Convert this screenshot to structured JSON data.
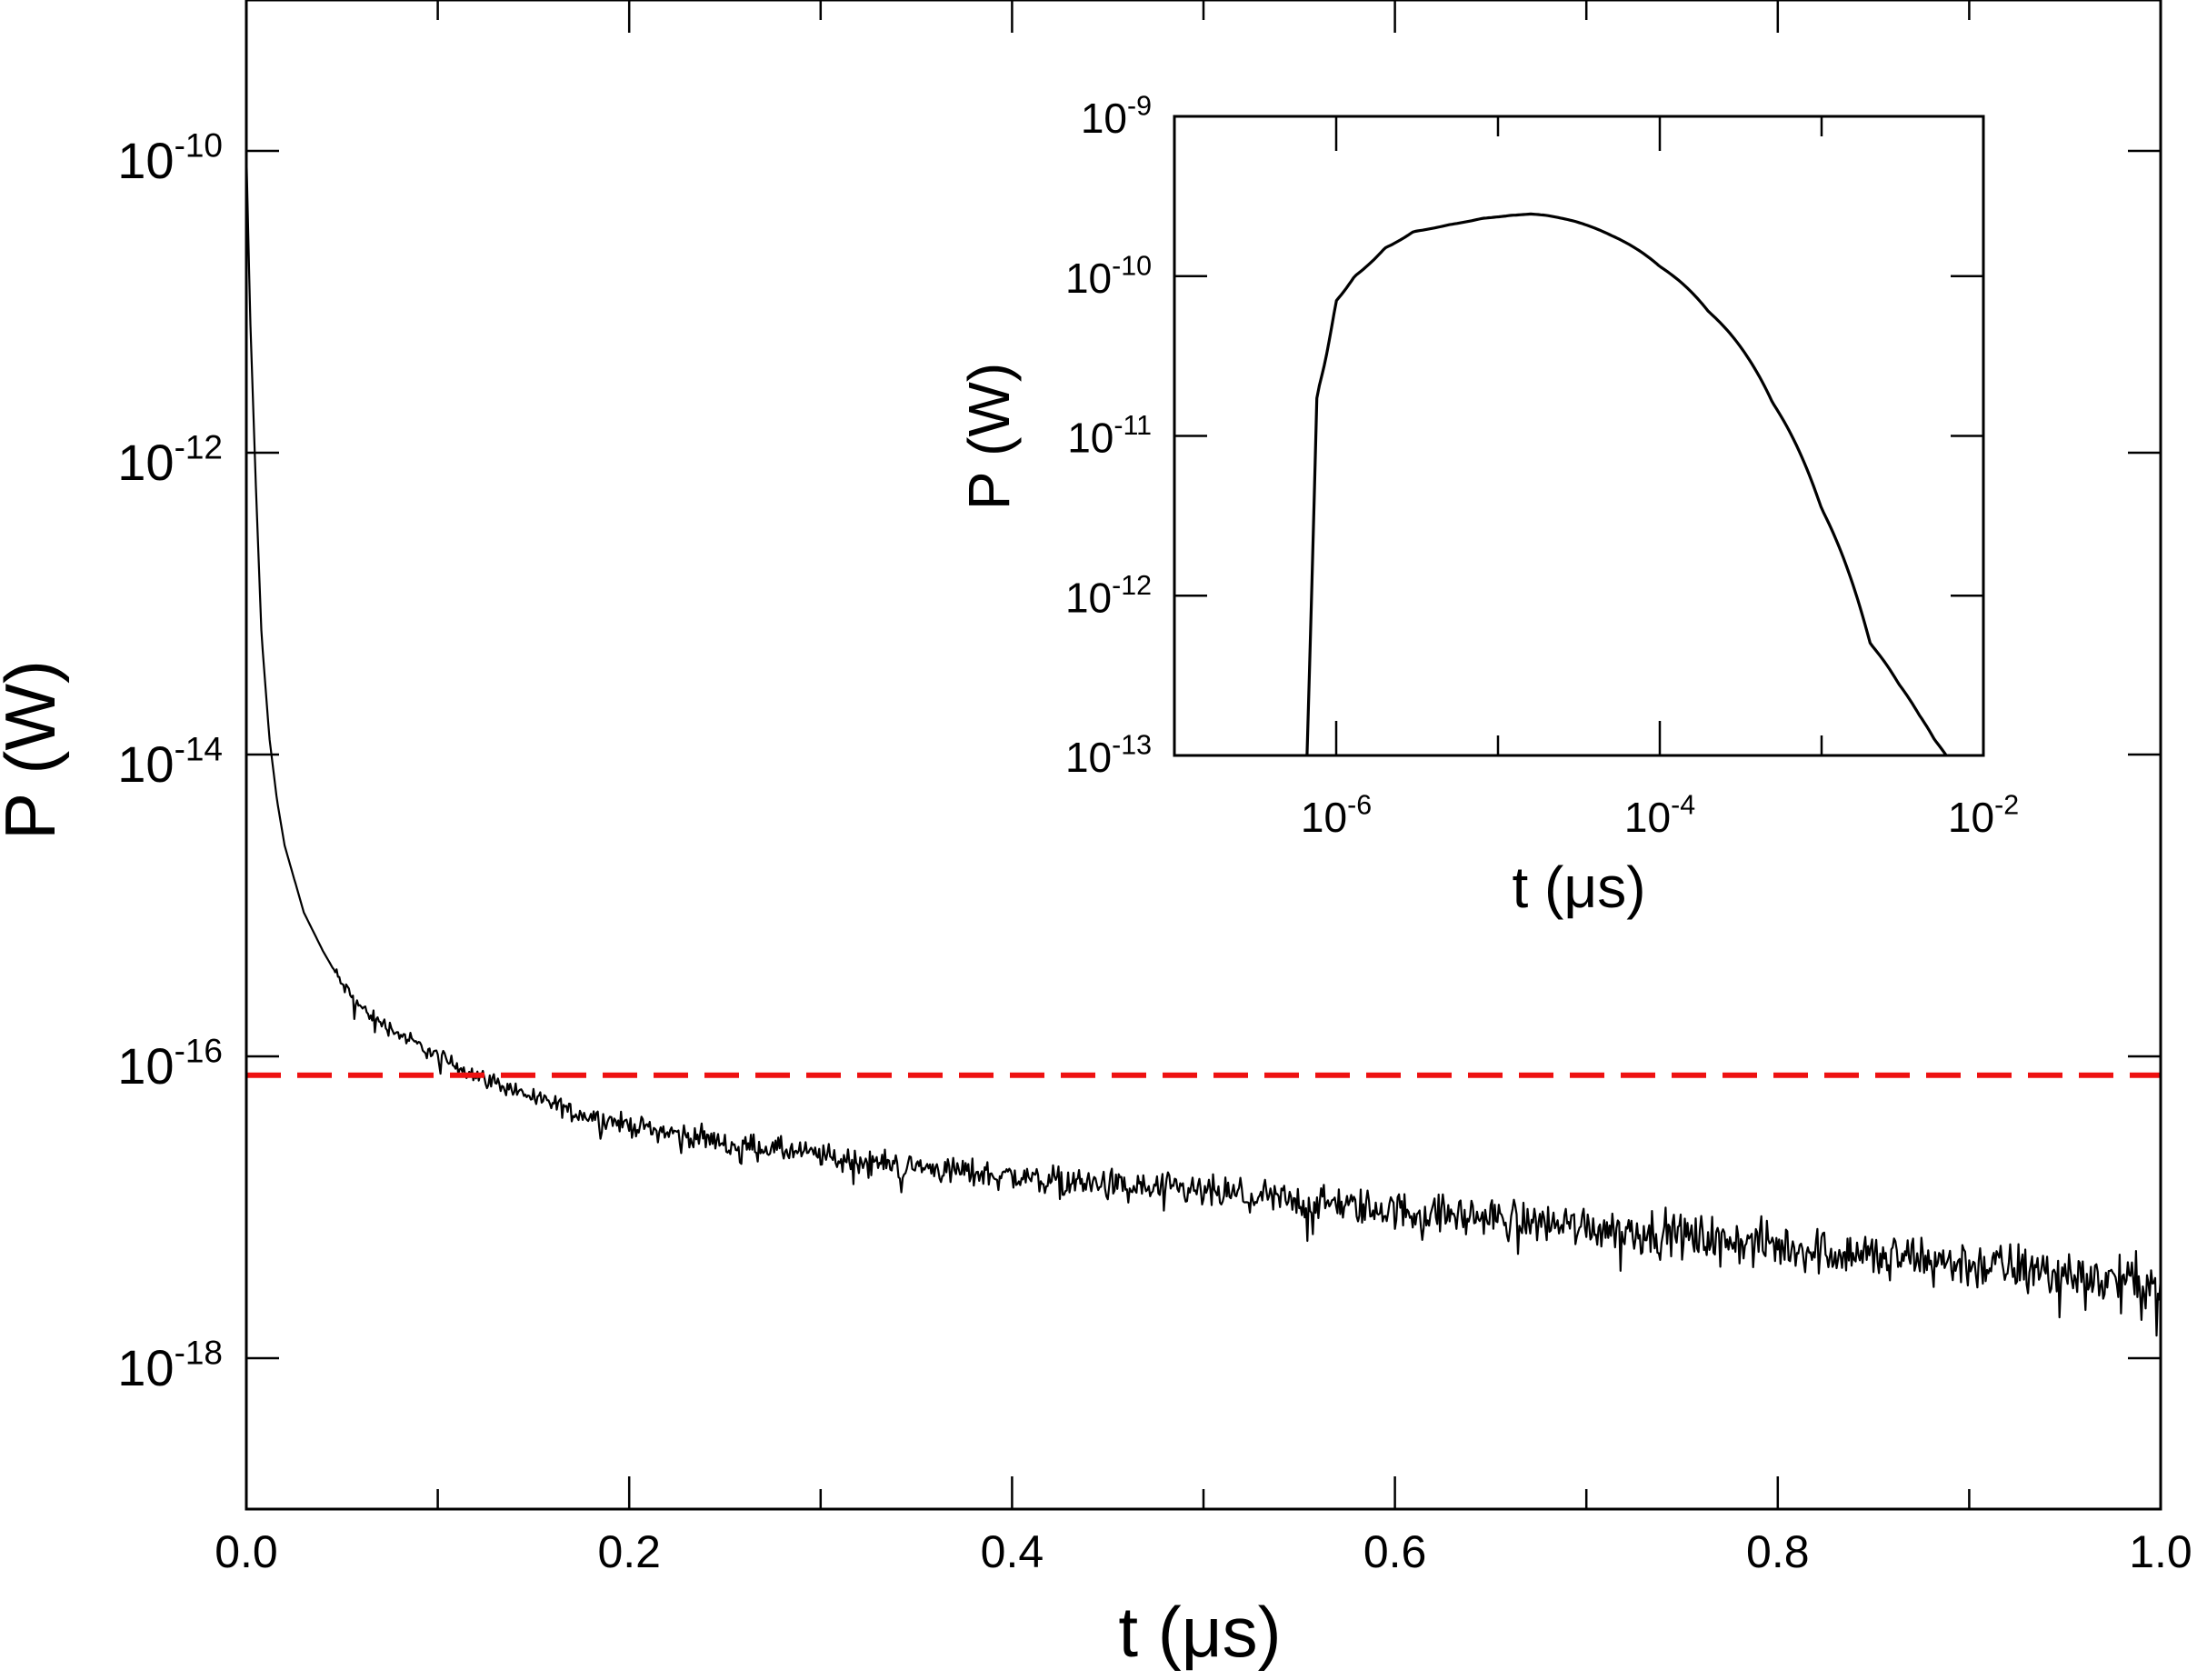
{
  "chart_data": [
    {
      "id": "main",
      "type": "line",
      "xlabel": "t (μs)",
      "ylabel": "P (W)",
      "xlim": [
        0.0,
        1.0
      ],
      "ylim": [
        1e-19,
        1e-09
      ],
      "yscale": "log",
      "grid": false,
      "legend": "none",
      "x_tick_labels": [
        "0.0",
        "0.2",
        "0.4",
        "0.6",
        "0.8",
        "1.0"
      ],
      "x_tick_values": [
        0.0,
        0.2,
        0.4,
        0.6,
        0.8,
        1.0
      ],
      "x_minor_step": 0.1,
      "y_tick_values": [
        1e-10,
        1e-12,
        1e-14,
        1e-16,
        1e-18
      ],
      "y_tick_labels": [
        {
          "base": "10",
          "exp": "-10"
        },
        {
          "base": "10",
          "exp": "-12"
        },
        {
          "base": "10",
          "exp": "-14"
        },
        {
          "base": "10",
          "exp": "-16"
        },
        {
          "base": "10",
          "exp": "-18"
        }
      ],
      "series": [
        {
          "color": "#000000",
          "style": "solid",
          "noisy": true,
          "x": [
            0.0,
            0.002,
            0.005,
            0.008,
            0.012,
            0.016,
            0.02,
            0.025,
            0.03,
            0.04,
            0.05,
            0.06,
            0.07,
            0.08,
            0.1,
            0.12,
            0.14,
            0.16,
            0.18,
            0.2,
            0.25,
            0.3,
            0.35,
            0.4,
            0.45,
            0.5,
            0.55,
            0.6,
            0.65,
            0.7,
            0.75,
            0.8,
            0.85,
            0.9,
            0.95,
            1.0
          ],
          "y": [
            1e-10,
            8e-12,
            6e-13,
            6e-14,
            1.3e-14,
            5e-15,
            2.5e-15,
            1.5e-15,
            9e-16,
            5e-16,
            3e-16,
            2.1e-16,
            1.7e-16,
            1.4e-16,
            1e-16,
            7.5e-17,
            6e-17,
            4.8e-17,
            4e-17,
            3.5e-17,
            2.7e-17,
            2.2e-17,
            1.85e-17,
            1.6e-17,
            1.4e-17,
            1.25e-17,
            1.1e-17,
            9.5e-18,
            8.5e-18,
            7.5e-18,
            6.5e-18,
            5.5e-18,
            4.8e-18,
            4.2e-18,
            3.6e-18,
            3e-18
          ]
        },
        {
          "color": "#ee1111",
          "style": "dashed",
          "x": [
            0.0,
            1.0
          ],
          "y": [
            7.5e-17,
            7.5e-17
          ]
        }
      ]
    },
    {
      "id": "inset",
      "type": "line",
      "xlabel": "t (μs)",
      "ylabel": "P (W)",
      "xlim": [
        1e-07,
        0.01
      ],
      "ylim": [
        1e-13,
        1e-09
      ],
      "xscale": "log",
      "yscale": "log",
      "grid": false,
      "legend": "none",
      "x_tick_values": [
        1e-06,
        0.0001,
        0.01
      ],
      "x_tick_labels": [
        {
          "base": "10",
          "exp": "-6"
        },
        {
          "base": "10",
          "exp": "-4"
        },
        {
          "base": "10",
          "exp": "-2"
        }
      ],
      "x_minor_values": [
        1e-05,
        0.001
      ],
      "y_tick_values": [
        1e-09,
        1e-10,
        1e-11,
        1e-12,
        1e-13
      ],
      "y_tick_labels": [
        {
          "base": "10",
          "exp": "-9"
        },
        {
          "base": "10",
          "exp": "-10"
        },
        {
          "base": "10",
          "exp": "-11"
        },
        {
          "base": "10",
          "exp": "-12"
        },
        {
          "base": "10",
          "exp": "-13"
        }
      ],
      "series": [
        {
          "color": "#000000",
          "style": "solid",
          "x": [
            6.6e-07,
            7.6e-07,
            8.6e-07,
            1e-06,
            1.3e-06,
            2e-06,
            3e-06,
            5e-06,
            8e-06,
            1.2e-05,
            1.6e-05,
            2e-05,
            3e-05,
            5e-05,
            0.0001,
            0.0002,
            0.0005,
            0.001,
            0.002,
            0.003,
            0.004,
            0.005,
            0.0059
          ],
          "y": [
            1e-13,
            1.8e-11,
            3e-11,
            7e-11,
            1e-10,
            1.5e-10,
            1.9e-10,
            2.1e-10,
            2.3e-10,
            2.4e-10,
            2.45e-10,
            2.4e-10,
            2.2e-10,
            1.8e-10,
            1.15e-10,
            6e-11,
            1.6e-11,
            3.5e-12,
            5e-13,
            2.8e-13,
            1.8e-13,
            1.25e-13,
            1e-13
          ]
        }
      ]
    }
  ]
}
